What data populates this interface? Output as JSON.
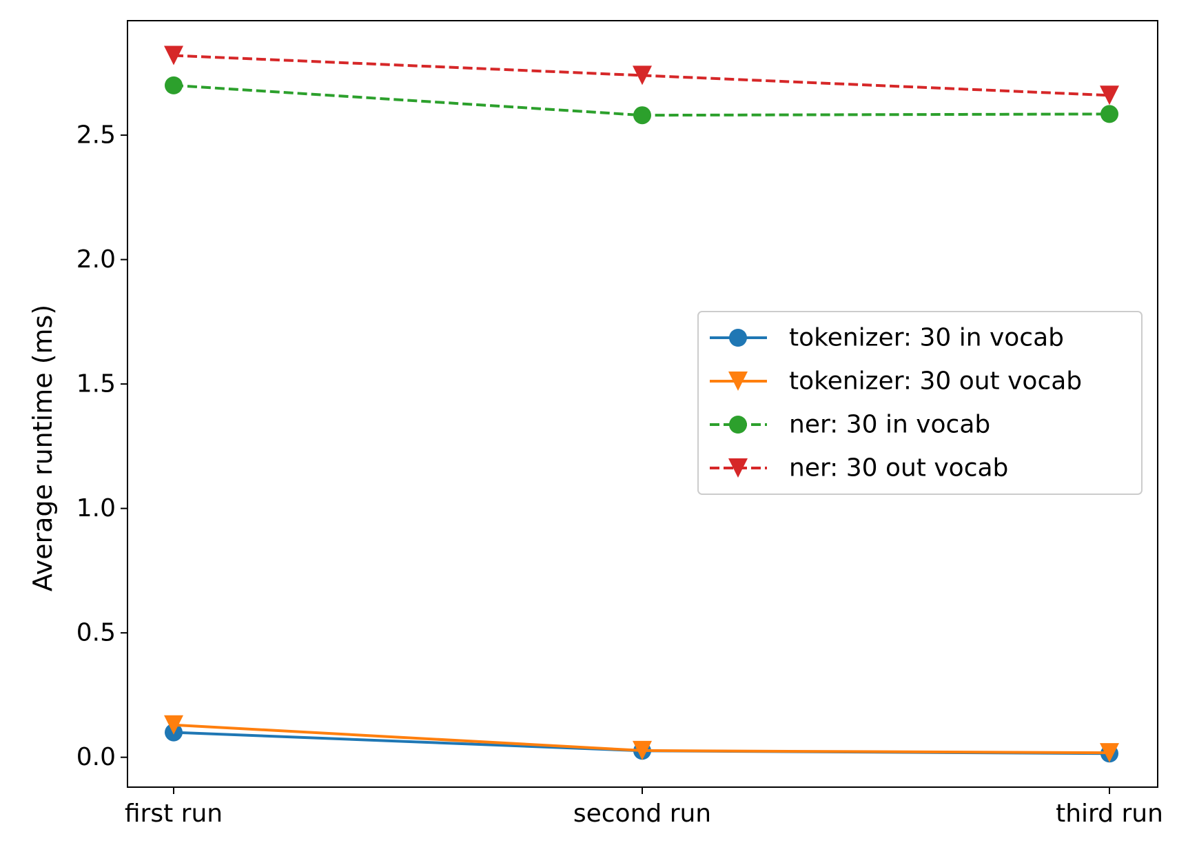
{
  "chart_data": {
    "type": "line",
    "title": "",
    "xlabel": "",
    "ylabel": "Average runtime (ms)",
    "categories": [
      "first run",
      "second run",
      "third run"
    ],
    "ylim": [
      -0.12,
      2.96
    ],
    "yticks": [
      0.0,
      0.5,
      1.0,
      1.5,
      2.0,
      2.5
    ],
    "ytick_labels": [
      "0.0",
      "0.5",
      "1.0",
      "1.5",
      "2.0",
      "2.5"
    ],
    "grid": false,
    "legend_position": "center-right",
    "series": [
      {
        "name": "tokenizer: 30 in vocab",
        "values": [
          0.1,
          0.026,
          0.015
        ],
        "color": "#1f77b4",
        "marker": "circle",
        "line": "solid"
      },
      {
        "name": "tokenizer: 30 out vocab",
        "values": [
          0.13,
          0.027,
          0.018
        ],
        "color": "#ff7f0e",
        "marker": "triangle-down",
        "line": "solid"
      },
      {
        "name": "ner: 30 in vocab",
        "values": [
          2.7,
          2.58,
          2.585
        ],
        "color": "#2ca02c",
        "marker": "circle",
        "line": "dashed"
      },
      {
        "name": "ner: 30 out vocab",
        "values": [
          2.82,
          2.74,
          2.66
        ],
        "color": "#d62728",
        "marker": "triangle-down",
        "line": "dashed"
      }
    ]
  }
}
